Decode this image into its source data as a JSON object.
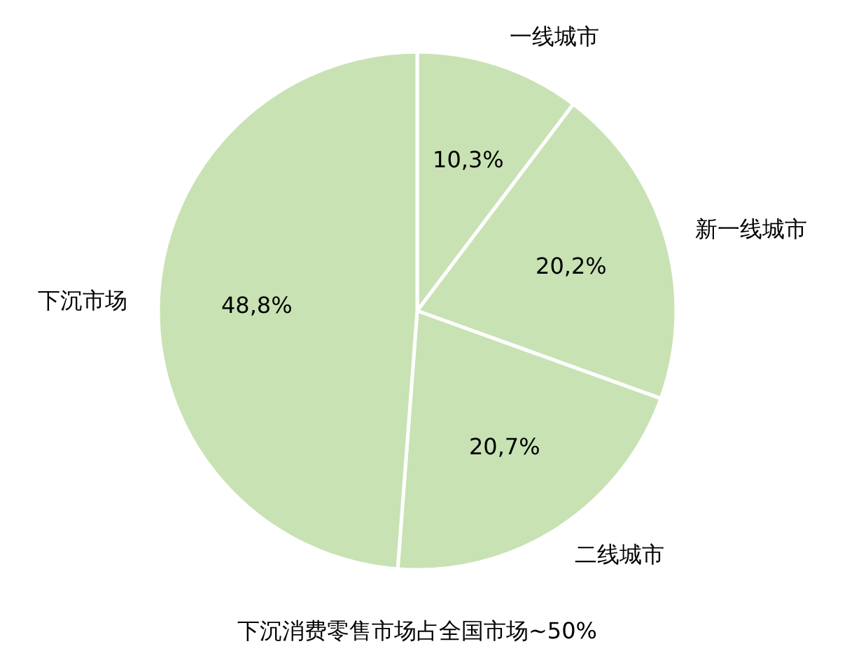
{
  "chart_data": {
    "type": "pie",
    "title": "下沉消费零售市场占全国市场~50%",
    "categories": [
      "一线城市",
      "新一线城市",
      "二线城市",
      "下沉市场"
    ],
    "values": [
      10.3,
      20.2,
      20.7,
      48.8
    ],
    "value_labels": [
      "10,3%",
      "20,2%",
      "20,7%",
      "48,8%"
    ],
    "colors": [
      "#c8e2b4",
      "#c8e2b4",
      "#c8e2b4",
      "#c8e2b4"
    ]
  }
}
